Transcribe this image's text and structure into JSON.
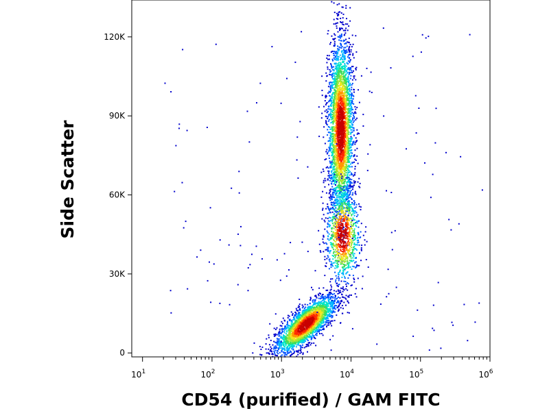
{
  "chart_data": {
    "type": "scatter",
    "title": "",
    "xlabel": "CD54 (purified) / GAM FITC",
    "ylabel": "Side Scatter",
    "x_scale": "log",
    "xlim": [
      7,
      1000000
    ],
    "ylim": [
      -1500,
      134000
    ],
    "x_ticks": [
      {
        "base": "10",
        "exp": "1",
        "value": 10
      },
      {
        "base": "10",
        "exp": "2",
        "value": 100
      },
      {
        "base": "10",
        "exp": "3",
        "value": 1000
      },
      {
        "base": "10",
        "exp": "4",
        "value": 10000
      },
      {
        "base": "10",
        "exp": "5",
        "value": 100000
      },
      {
        "base": "10",
        "exp": "6",
        "value": 1000000
      }
    ],
    "y_ticks": [
      {
        "label": "0",
        "value": 0
      },
      {
        "label": "30K",
        "value": 30000
      },
      {
        "label": "60K",
        "value": 60000
      },
      {
        "label": "90K",
        "value": 90000
      },
      {
        "label": "120K",
        "value": 120000
      }
    ],
    "density_colormap": [
      "#0000cc",
      "#0050ff",
      "#00b4ff",
      "#00e6c8",
      "#3cdc5a",
      "#a0e632",
      "#f0e61e",
      "#ff9600",
      "#ff2800",
      "#c80000"
    ],
    "populations": [
      {
        "name_hidden": true,
        "x_center": 2200,
        "x_log_spread": 0.22,
        "y_center": 11000,
        "y_spread": 3500,
        "tilt": 8500,
        "count": 2600
      },
      {
        "name_hidden": true,
        "x_center": 7000,
        "x_log_spread": 0.09,
        "y_center": 85000,
        "y_spread": 17000,
        "tilt": 0,
        "count": 3300
      },
      {
        "name_hidden": true,
        "x_center": 7500,
        "x_log_spread": 0.12,
        "y_center": 45000,
        "y_spread": 9000,
        "tilt": 0,
        "count": 1000
      }
    ],
    "grid": false,
    "legend": "none"
  }
}
